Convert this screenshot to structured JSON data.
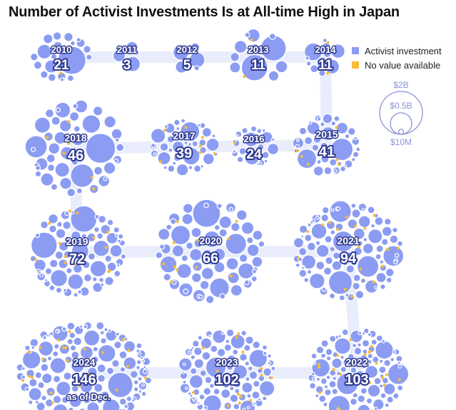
{
  "title": "Number of Activist Investments Is at All-time High in Japan",
  "legend": {
    "items": [
      {
        "label": "Activist investment",
        "color": "#8b9cf2"
      },
      {
        "label": "No value available",
        "color": "#f5bd3c"
      }
    ]
  },
  "size_legend": {
    "labels": [
      "$2B",
      "$0.5B",
      "$10M"
    ]
  },
  "colors": {
    "bubble": "#8b9cf2",
    "bubble_stroke": "#ffffff",
    "no_value": "#f5bd3c",
    "path": "#e9edfb",
    "label_outline": "#2f3a8f"
  },
  "chart_data": {
    "type": "packed-bubble",
    "title": "Number of Activist Investments Is at All-time High in Japan",
    "years": [
      {
        "year": "2010",
        "count": 21
      },
      {
        "year": "2011",
        "count": 3
      },
      {
        "year": "2012",
        "count": 5
      },
      {
        "year": "2013",
        "count": 11
      },
      {
        "year": "2014",
        "count": 11
      },
      {
        "year": "2015",
        "count": 41
      },
      {
        "year": "2016",
        "count": 24
      },
      {
        "year": "2017",
        "count": 39
      },
      {
        "year": "2018",
        "count": 46
      },
      {
        "year": "2019",
        "count": 72
      },
      {
        "year": "2020",
        "count": 66
      },
      {
        "year": "2021",
        "count": 94
      },
      {
        "year": "2022",
        "count": 103
      },
      {
        "year": "2023",
        "count": 102
      },
      {
        "year": "2024",
        "count": 146,
        "note": "as of Dec."
      }
    ],
    "series": [
      {
        "name": "Activist investment",
        "color": "#8b9cf2"
      },
      {
        "name": "No value available",
        "color": "#f5bd3c"
      }
    ],
    "bubble_size_scale": [
      "$2B",
      "$0.5B",
      "$10M"
    ]
  }
}
